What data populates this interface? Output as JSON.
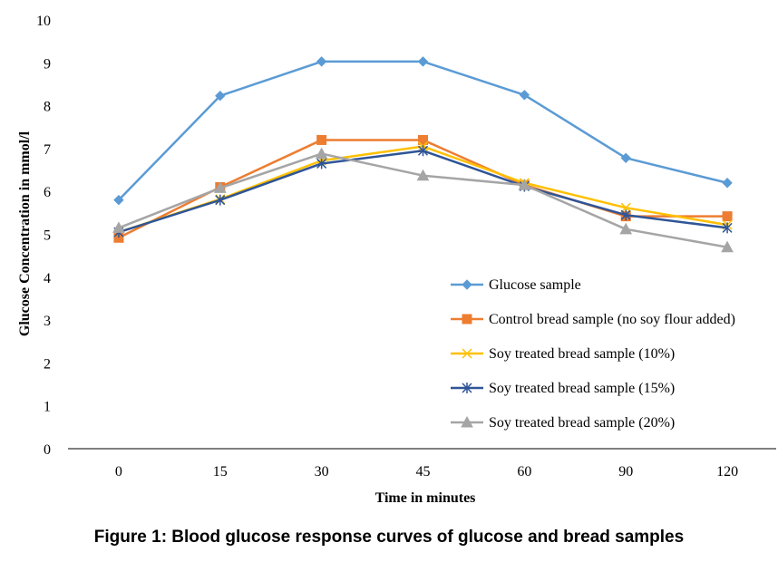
{
  "caption": "Figure 1: Blood glucose response curves of glucose and bread samples",
  "chart_data": {
    "type": "line",
    "xlabel": "Time in minutes",
    "ylabel": "Glucose Concentration in mmol/l",
    "categories": [
      "0",
      "15",
      "30",
      "45",
      "60",
      "90",
      "120"
    ],
    "ylim": [
      0,
      10
    ],
    "yticks": [
      0,
      1,
      2,
      3,
      4,
      5,
      6,
      7,
      8,
      9,
      10
    ],
    "grid": false,
    "legend_position": "lower-right inside plot",
    "series": [
      {
        "name": "Glucose sample",
        "color": "#5B9BD5",
        "marker": "diamond",
        "values": [
          5.8,
          8.23,
          9.03,
          9.03,
          8.25,
          6.78,
          6.2
        ]
      },
      {
        "name": "Control bread sample (no soy flour added)",
        "color": "#ED7D31",
        "marker": "square",
        "values": [
          4.92,
          6.1,
          7.2,
          7.2,
          6.15,
          5.42,
          5.42
        ]
      },
      {
        "name": "Soy treated bread sample (10%)",
        "color": "#FFC000",
        "marker": "x",
        "values": [
          5.05,
          5.82,
          6.72,
          7.05,
          6.2,
          5.62,
          5.22
        ]
      },
      {
        "name": "Soy treated bread sample (15%)",
        "color": "#2F5597",
        "marker": "asterisk",
        "values": [
          5.05,
          5.8,
          6.65,
          6.95,
          6.12,
          5.45,
          5.15
        ]
      },
      {
        "name": "Soy treated bread sample (20%)",
        "color": "#A5A5A5",
        "marker": "triangle",
        "values": [
          5.15,
          6.08,
          6.88,
          6.37,
          6.15,
          5.12,
          4.7
        ]
      }
    ]
  }
}
